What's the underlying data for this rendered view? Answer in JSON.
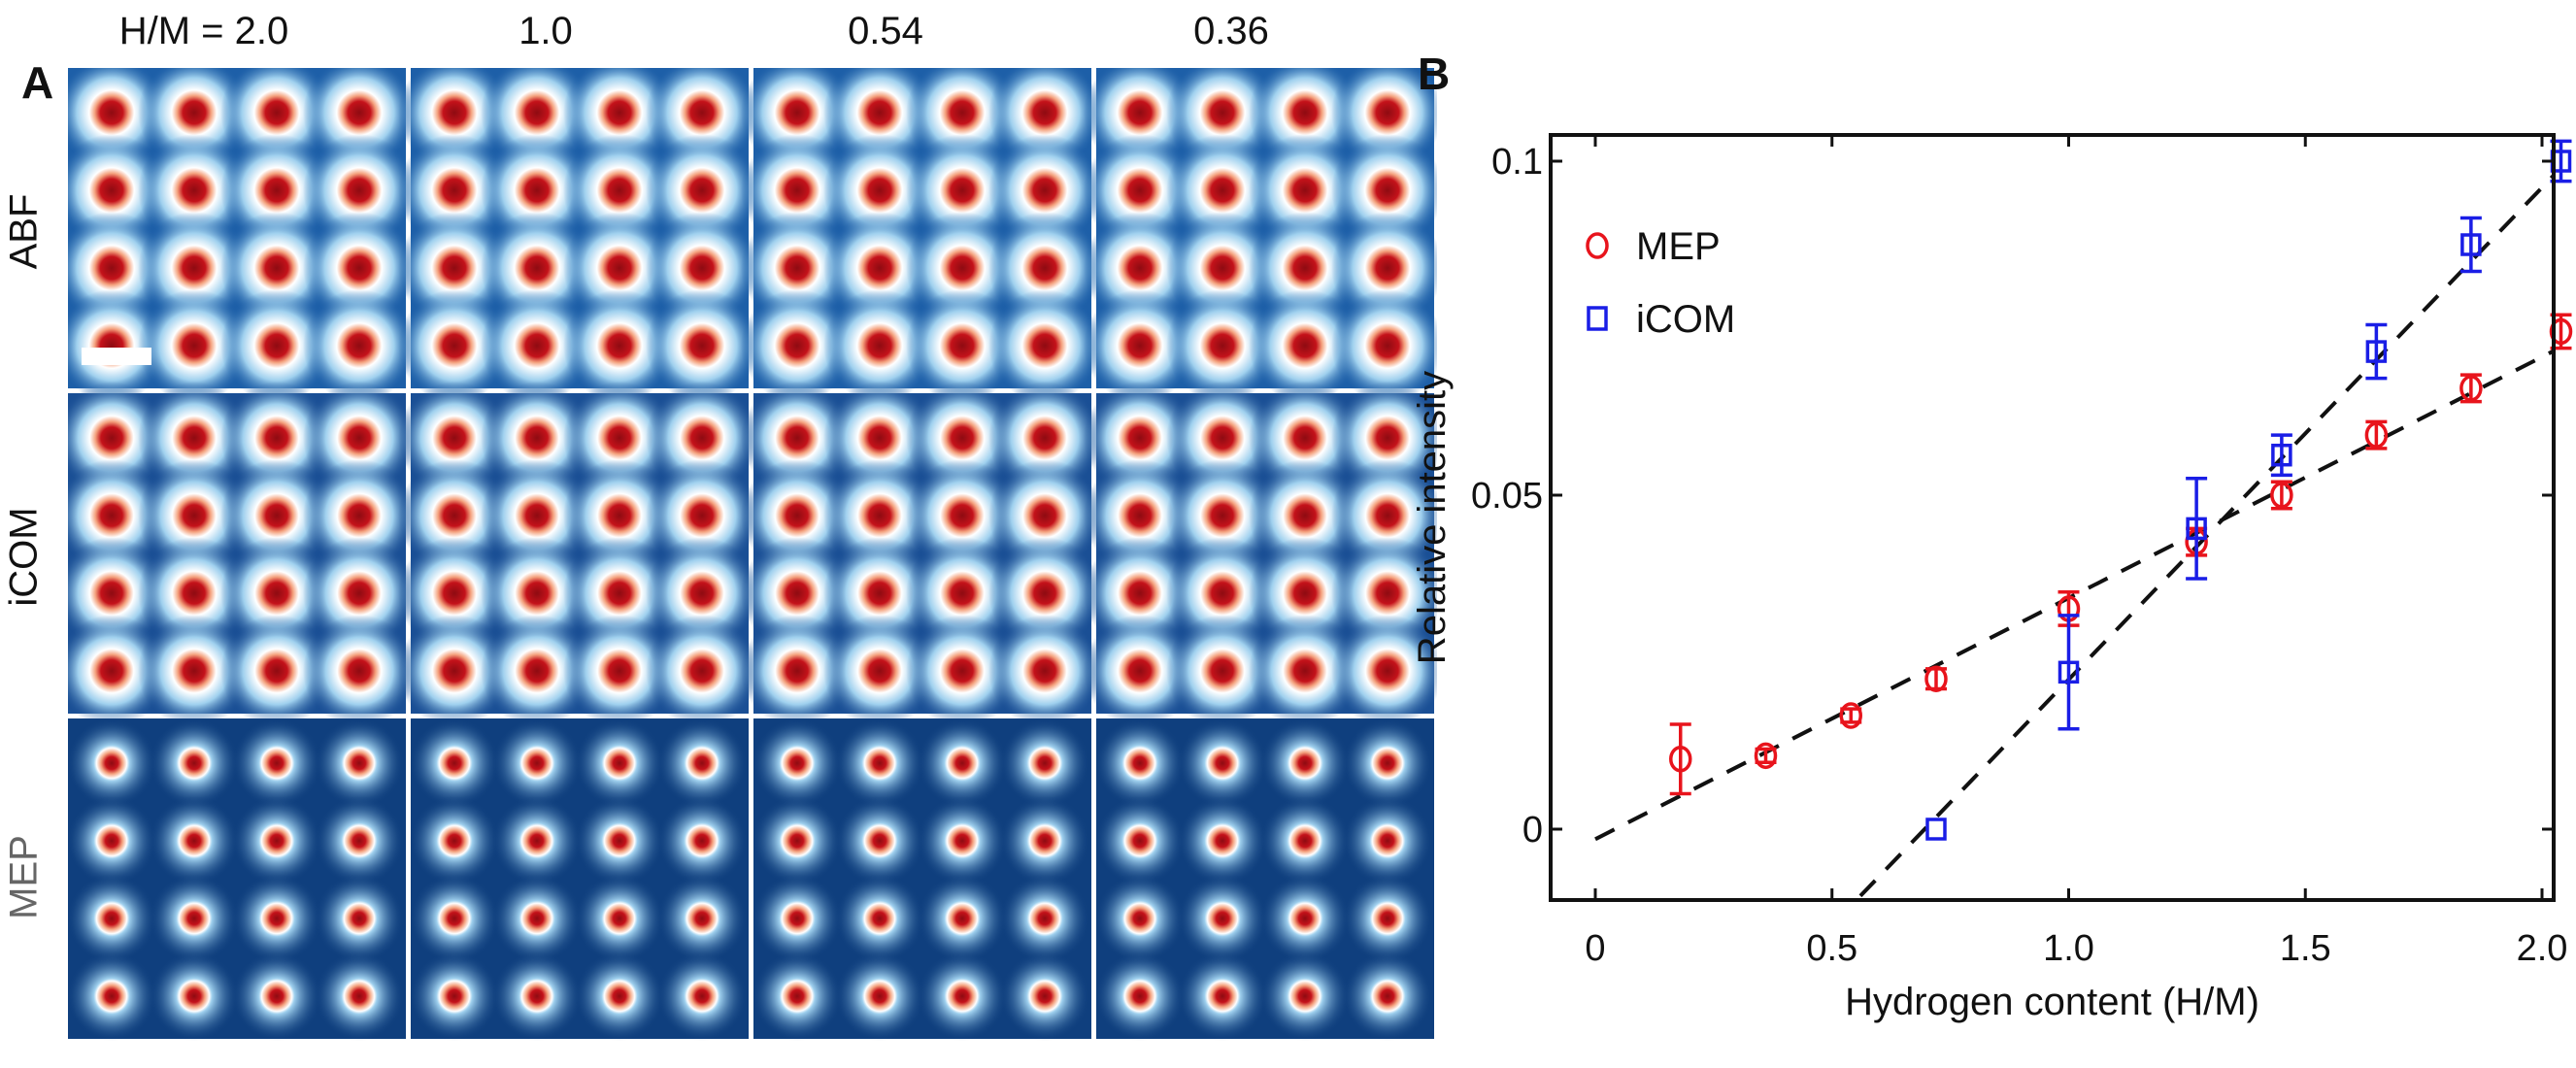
{
  "panel_a": {
    "letter": "A",
    "column_labels": [
      "H/M = 2.0",
      "1.0",
      "0.54",
      "0.36"
    ],
    "row_labels": [
      "ABF",
      "iCOM",
      "MEP"
    ],
    "row_label_colors": [
      "#111111",
      "#111111",
      "#666666"
    ],
    "lattice": {
      "rows": 4,
      "cols": 4
    },
    "colormap": {
      "background_abf": "#1d5fa8",
      "background_icom": "#1a4f95",
      "background_mep": "#0f3f7e",
      "halo": "#ffffff",
      "core": "#c4121a"
    },
    "scale_bar": true
  },
  "panel_b": {
    "letter": "B"
  },
  "chart_data": {
    "type": "scatter",
    "title": "",
    "xlabel": "Hydrogen content (H/M)",
    "ylabel": "Relative intensity",
    "xlim": [
      -0.1,
      2.05
    ],
    "ylim": [
      -0.01,
      0.105
    ],
    "xticks": [
      0,
      0.5,
      1.0,
      1.5,
      2.0
    ],
    "xtick_labels": [
      "0",
      "0.5",
      "1.0",
      "1.5",
      "2.0"
    ],
    "yticks": [
      0,
      0.05,
      0.1
    ],
    "ytick_labels": [
      "0",
      "0.05",
      "0.1"
    ],
    "grid": false,
    "legend": {
      "placement": "top-left",
      "entries": [
        "MEP",
        "iCOM"
      ]
    },
    "series": [
      {
        "name": "MEP",
        "marker": "circle",
        "color": "#e8141c",
        "x": [
          0.18,
          0.36,
          0.54,
          0.72,
          1.0,
          1.27,
          1.45,
          1.65,
          1.85,
          2.04
        ],
        "y": [
          0.0105,
          0.011,
          0.017,
          0.0225,
          0.033,
          0.043,
          0.05,
          0.059,
          0.066,
          0.0745
        ],
        "err": [
          0.0052,
          0.001,
          0.001,
          0.0015,
          0.0025,
          0.002,
          0.002,
          0.002,
          0.002,
          0.0025
        ],
        "fit": {
          "x": [
            0.0,
            2.05
          ],
          "y": [
            -0.0015,
            0.0725
          ]
        }
      },
      {
        "name": "iCOM",
        "marker": "square",
        "color": "#1a1ee6",
        "x": [
          0.72,
          1.0,
          1.27,
          1.45,
          1.65,
          1.85,
          2.04
        ],
        "y": [
          0.0,
          0.0235,
          0.045,
          0.056,
          0.0715,
          0.0875,
          0.1
        ],
        "err": [
          0.0,
          0.0085,
          0.0075,
          0.003,
          0.004,
          0.004,
          0.003
        ],
        "fit": {
          "x": [
            0.56,
            2.04
          ],
          "y": [
            -0.01,
            0.099
          ]
        }
      }
    ]
  }
}
